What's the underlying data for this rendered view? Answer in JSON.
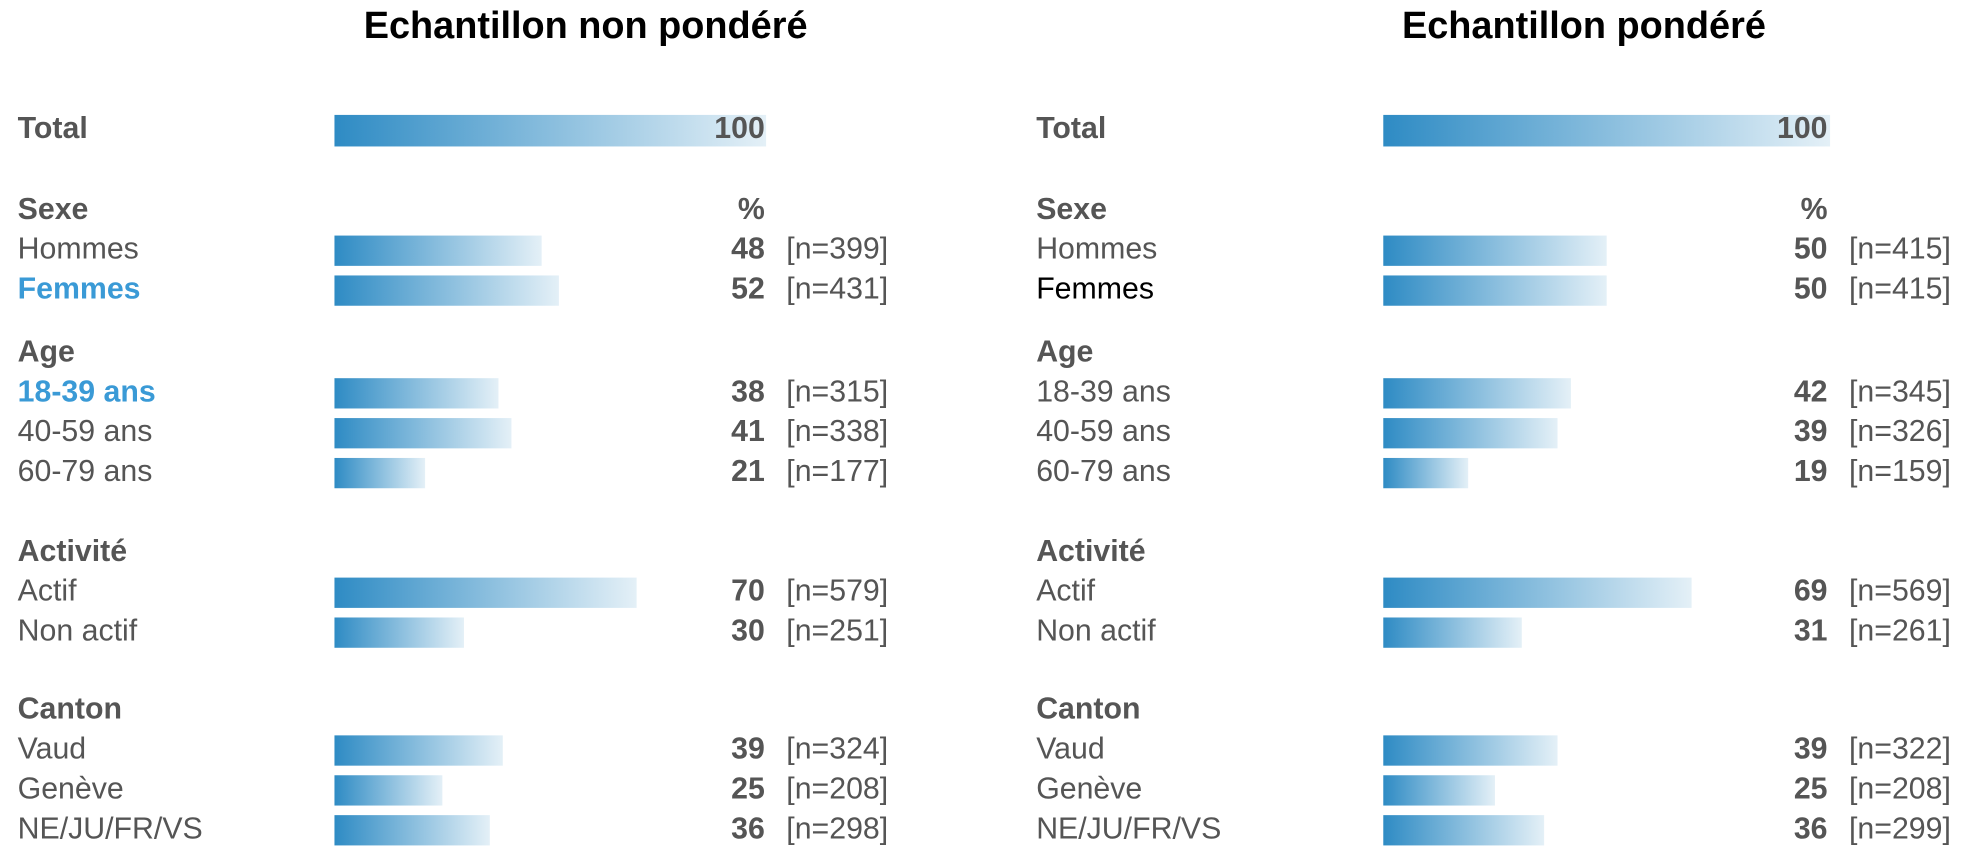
{
  "chart_data": [
    {
      "type": "bar",
      "orientation": "horizontal",
      "title": "Echantillon non pondéré",
      "xlim": [
        0,
        100
      ],
      "total": {
        "label": "Total",
        "value": 100
      },
      "unit": "%",
      "color": "#2e8bc4",
      "highlight_color": "#3a9ad6",
      "groups": [
        {
          "name": "Sexe",
          "categories": [
            "Hommes",
            "Femmes"
          ],
          "values": [
            48,
            52
          ],
          "n_labels": [
            "[n=399]",
            "[n=431]"
          ],
          "highlighted": [
            false,
            true
          ]
        },
        {
          "name": "Age",
          "categories": [
            "18-39 ans",
            "40-59 ans",
            "60-79 ans"
          ],
          "values": [
            38,
            41,
            21
          ],
          "n_labels": [
            "[n=315]",
            "[n=338]",
            "[n=177]"
          ],
          "highlighted": [
            true,
            false,
            false
          ]
        },
        {
          "name": "Activité",
          "categories": [
            "Actif",
            "Non actif"
          ],
          "values": [
            70,
            30
          ],
          "n_labels": [
            "[n=579]",
            "[n=251]"
          ],
          "highlighted": [
            false,
            false
          ]
        },
        {
          "name": "Canton",
          "categories": [
            "Vaud",
            "Genève",
            "NE/JU/FR/VS"
          ],
          "values": [
            39,
            25,
            36
          ],
          "n_labels": [
            "[n=324]",
            "[n=208]",
            "[n=298]"
          ],
          "highlighted": [
            false,
            false,
            false
          ]
        }
      ]
    },
    {
      "type": "bar",
      "orientation": "horizontal",
      "title": "Echantillon pondéré",
      "xlim": [
        0,
        100
      ],
      "total": {
        "label": "Total",
        "value": 100
      },
      "unit": "%",
      "color": "#2e8bc4",
      "highlight_color": "#3a9ad6",
      "groups": [
        {
          "name": "Sexe",
          "categories": [
            "Hommes",
            "Femmes"
          ],
          "values": [
            50,
            50
          ],
          "n_labels": [
            "[n=415]",
            "[n=415]"
          ],
          "highlighted": [
            false,
            false
          ]
        },
        {
          "name": "Age",
          "categories": [
            "18-39 ans",
            "40-59 ans",
            "60-79 ans"
          ],
          "values": [
            42,
            39,
            19
          ],
          "n_labels": [
            "[n=345]",
            "[n=326]",
            "[n=159]"
          ],
          "highlighted": [
            false,
            false,
            false
          ]
        },
        {
          "name": "Activité",
          "categories": [
            "Actif",
            "Non actif"
          ],
          "values": [
            69,
            31
          ],
          "n_labels": [
            "[n=569]",
            "[n=261]"
          ],
          "highlighted": [
            false,
            false
          ]
        },
        {
          "name": "Canton",
          "categories": [
            "Vaud",
            "Genève",
            "NE/JU/FR/VS"
          ],
          "values": [
            39,
            25,
            36
          ],
          "n_labels": [
            "[n=322]",
            "[n=208]",
            "[n=299]"
          ],
          "highlighted": [
            false,
            false,
            false
          ]
        }
      ]
    }
  ]
}
